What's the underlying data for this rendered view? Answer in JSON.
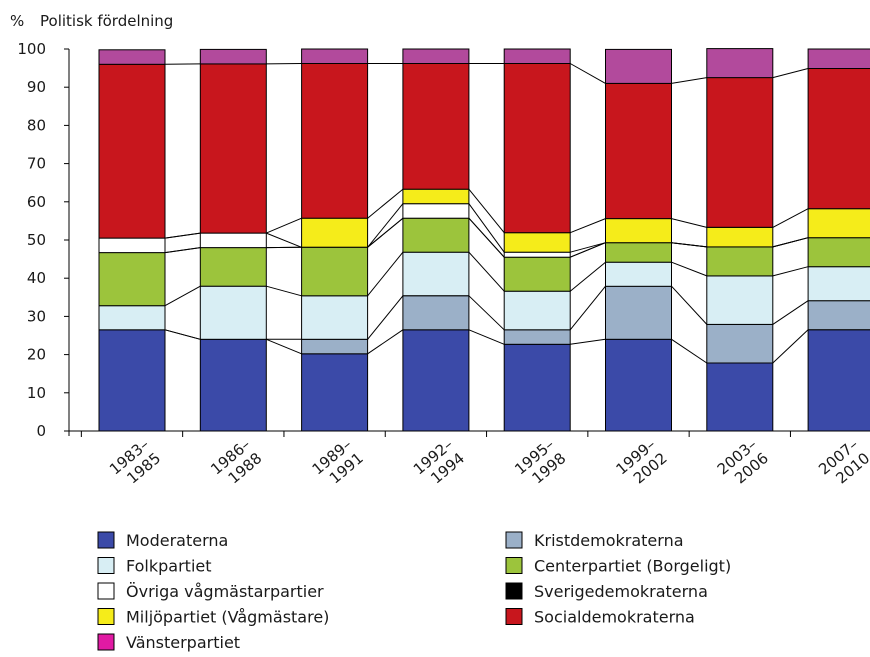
{
  "chart_data": {
    "type": "bar",
    "stacked": true,
    "title": "",
    "ylabel_unit": "%",
    "ylabel": "Politisk fördelning",
    "xlabel": "",
    "ylim": [
      0,
      100
    ],
    "yticks": [
      0,
      10,
      20,
      30,
      40,
      50,
      60,
      70,
      80,
      90,
      100
    ],
    "grid": false,
    "legend_position": "bottom",
    "categories": [
      [
        "1983–",
        "1985"
      ],
      [
        "1986–",
        "1988"
      ],
      [
        "1989–",
        "1991"
      ],
      [
        "1992–",
        "1994"
      ],
      [
        "1995–",
        "1998"
      ],
      [
        "1999–",
        "2002"
      ],
      [
        "2003–",
        "2006"
      ],
      [
        "2007–",
        "2010"
      ]
    ],
    "series": [
      {
        "name": "Moderaterna",
        "color": "#3b4aa8",
        "values": [
          26.5,
          24.0,
          20.2,
          26.5,
          22.7,
          24.0,
          17.8,
          26.5
        ]
      },
      {
        "name": "Kristdemokraterna",
        "color": "#9bb0c8",
        "values": [
          0,
          0,
          3.8,
          8.9,
          3.8,
          13.9,
          10.1,
          7.6
        ]
      },
      {
        "name": "Folkpartiet",
        "color": "#d8eef4",
        "values": [
          6.3,
          13.9,
          11.4,
          11.4,
          10.1,
          6.3,
          12.7,
          8.9
        ]
      },
      {
        "name": "Centerpartiet (Borgeligt)",
        "color": "#9cc43c",
        "values": [
          13.9,
          10.1,
          12.7,
          8.9,
          8.9,
          5.1,
          7.6,
          7.6
        ]
      },
      {
        "name": "Sverigedemokraterna",
        "color": "#000000",
        "values": [
          0,
          0,
          0,
          0,
          0,
          0,
          0,
          0
        ]
      },
      {
        "name": "Övriga vågmästarpartier",
        "color": "#ffffff",
        "values": [
          3.8,
          3.8,
          0,
          3.8,
          1.3,
          0,
          0,
          0
        ]
      },
      {
        "name": "Miljöpartiet (Vågmästare)",
        "color": "#f5ec1a",
        "values": [
          0,
          0,
          7.6,
          3.8,
          5.1,
          6.3,
          5.1,
          7.6
        ]
      },
      {
        "name": "Socialdemokraterna",
        "color": "#c8161d",
        "values": [
          45.5,
          44.3,
          40.5,
          32.9,
          44.3,
          35.4,
          39.2,
          36.7
        ]
      },
      {
        "name": "Vänsterpartiet",
        "color": "#b24a9c",
        "values": [
          3.8,
          3.8,
          3.8,
          3.8,
          3.8,
          8.9,
          7.6,
          5.1
        ]
      }
    ],
    "legend_order": [
      "Moderaterna",
      "Folkpartiet",
      "Övriga vågmästarpartier",
      "Miljöpartiet (Vågmästare)",
      "Vänsterpartiet",
      "Kristdemokraterna",
      "Centerpartiet (Borgeligt)",
      "Sverigedemokraterna",
      "Socialdemokraterna"
    ],
    "legend_swatch_overrides": {
      "Vänsterpartiet": "#e11aa3"
    }
  }
}
